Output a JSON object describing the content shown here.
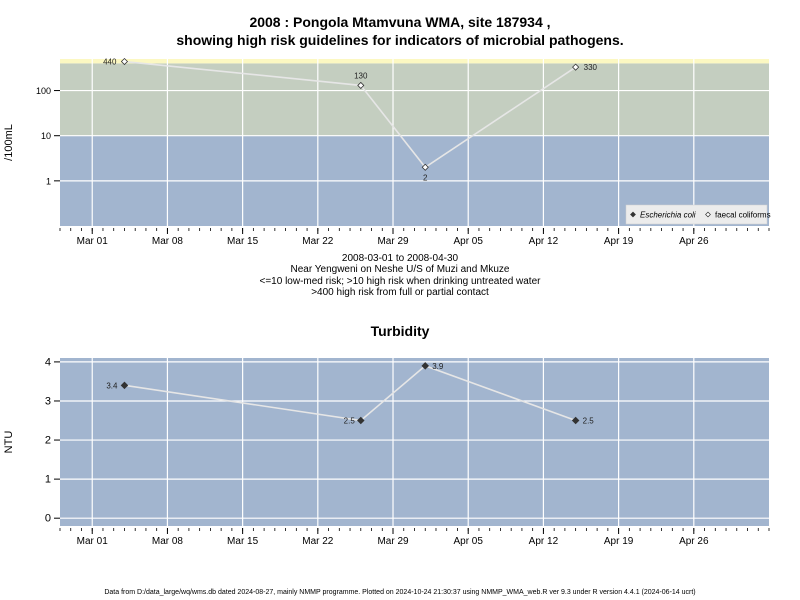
{
  "page": {
    "title_line1": "2008 : Pongola Mtamvuna WMA, site 187934 ,",
    "title_line2": "showing high risk guidelines for indicators of microbial pathogens.",
    "date_range": "2008-03-01 to 2008-04-30",
    "location": "Near Yengweni on Neshe U/S of Muzi and Mkuze",
    "risk_line1": "<=10 low-med risk; >10 high risk when drinking untreated water",
    "risk_line2": ">400 high risk from full or partial contact",
    "footer": "Data from D:/data_large/wq/wms.db dated 2024-08-27, mainly NMMP programme. Plotted on 2024-10-24 21:30:37 using NMMP_WMA_web.R ver 9.3 under R version 4.4.1 (2024-06-14 ucrt)"
  },
  "chart_data": [
    {
      "type": "line",
      "ylabel": "/100mL",
      "yscale": "log",
      "ylim": [
        0.1,
        500
      ],
      "yticks": [
        1,
        10,
        100
      ],
      "ytick_labels": [
        "1",
        "10",
        "100"
      ],
      "xlim": [
        "2008-02-27",
        "2008-05-03"
      ],
      "xticks": [
        "2008-03-01",
        "2008-03-08",
        "2008-03-15",
        "2008-03-22",
        "2008-03-29",
        "2008-04-05",
        "2008-04-12",
        "2008-04-19",
        "2008-04-26"
      ],
      "xtick_labels": [
        "Mar 01",
        "Mar 08",
        "Mar 15",
        "Mar 22",
        "Mar 29",
        "Apr 05",
        "Apr 12",
        "Apr 19",
        "Apr 26"
      ],
      "grid": true,
      "risk_bands": [
        {
          "from": 0.1,
          "to": 10,
          "color": "#a2b5cf"
        },
        {
          "from": 10,
          "to": 400,
          "color": "#c4cec0"
        },
        {
          "from": 400,
          "to": 500,
          "color": "#fcf8c2"
        }
      ],
      "series": [
        {
          "name": "faecal coliforms",
          "marker": "open-diamond",
          "x": [
            "2008-03-04",
            "2008-03-26",
            "2008-04-01",
            "2008-04-15"
          ],
          "y": [
            440,
            130,
            2,
            330
          ],
          "labels": [
            "440",
            "130",
            "2",
            "330"
          ]
        }
      ],
      "legend": {
        "position": "bottom-right",
        "entries": [
          {
            "label": "Escherichia coli",
            "marker": "filled-diamond",
            "italic": true
          },
          {
            "label": "faecal coliforms",
            "marker": "open-diamond",
            "italic": false
          }
        ]
      }
    },
    {
      "type": "line",
      "title": "Turbidity",
      "ylabel": "NTU",
      "ylim": [
        -0.2,
        4.1
      ],
      "yticks": [
        0,
        1,
        2,
        3,
        4
      ],
      "ytick_labels": [
        "0",
        "1",
        "2",
        "3",
        "4"
      ],
      "xlim": [
        "2008-02-27",
        "2008-05-03"
      ],
      "xticks": [
        "2008-03-01",
        "2008-03-08",
        "2008-03-15",
        "2008-03-22",
        "2008-03-29",
        "2008-04-05",
        "2008-04-12",
        "2008-04-19",
        "2008-04-26"
      ],
      "xtick_labels": [
        "Mar 01",
        "Mar 08",
        "Mar 15",
        "Mar 22",
        "Mar 29",
        "Apr 05",
        "Apr 12",
        "Apr 19",
        "Apr 26"
      ],
      "grid": true,
      "background": "#a2b5cf",
      "series": [
        {
          "marker": "filled-diamond",
          "x": [
            "2008-03-04",
            "2008-03-26",
            "2008-04-01",
            "2008-04-15"
          ],
          "y": [
            3.4,
            2.5,
            3.9,
            2.5
          ],
          "labels": [
            "3.4",
            "2.5",
            "3.9",
            "2.5"
          ]
        }
      ]
    }
  ]
}
